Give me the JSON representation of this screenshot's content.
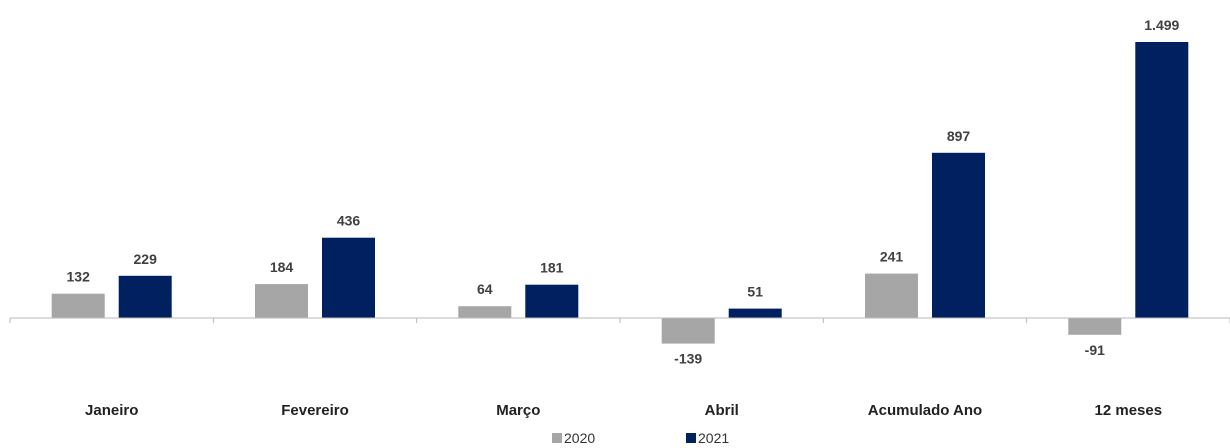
{
  "chart_data": {
    "type": "bar",
    "categories": [
      "Janeiro",
      "Fevereiro",
      "Março",
      "Abril",
      "Acumulado Ano",
      "12 meses"
    ],
    "series": [
      {
        "name": "2020",
        "color": "#a6a6a6",
        "values": [
          132,
          184,
          64,
          -139,
          241,
          -91
        ],
        "labels": [
          "132",
          "184",
          "64",
          "-139",
          "241",
          "-91"
        ]
      },
      {
        "name": "2021",
        "color": "#002060",
        "values": [
          229,
          436,
          181,
          51,
          897,
          1499
        ],
        "labels": [
          "229",
          "436",
          "181",
          "51",
          "897",
          "1.499"
        ]
      }
    ],
    "ylim": [
      -250,
      1499
    ],
    "grid": false,
    "legend_position": "bottom",
    "title": "",
    "xlabel": "",
    "ylabel": ""
  }
}
